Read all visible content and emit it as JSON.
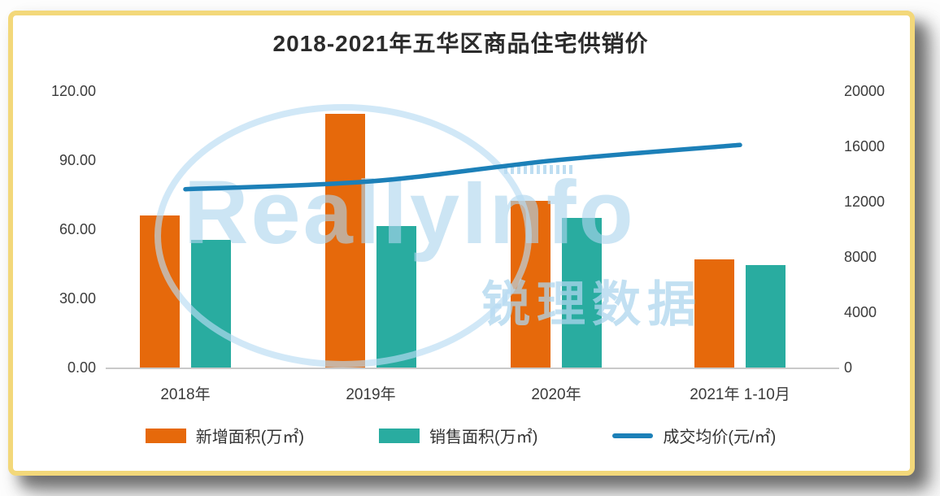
{
  "chart_data": {
    "type": "bar",
    "title": "2018-2021年五华区商品住宅供销价",
    "categories": [
      "2018年",
      "2019年",
      "2020年",
      "2021年 1-10月"
    ],
    "series": [
      {
        "name": "新增面积(万㎡)",
        "type": "bar",
        "axis": "left",
        "color": "#E6690B",
        "values": [
          66,
          110,
          72.5,
          47
        ]
      },
      {
        "name": "销售面积(万㎡)",
        "type": "bar",
        "axis": "left",
        "color": "#29ACA0",
        "values": [
          55.5,
          61.5,
          65,
          44.5
        ]
      },
      {
        "name": "成交均价(元/㎡)",
        "type": "line",
        "axis": "right",
        "color": "#1C80B8",
        "values": [
          12900,
          13470,
          15000,
          16100
        ]
      }
    ],
    "left_axis": {
      "min": 0,
      "max": 120,
      "ticks": [
        "0.00",
        "30.00",
        "60.00",
        "90.00",
        "120.00"
      ]
    },
    "right_axis": {
      "min": 0,
      "max": 20000,
      "ticks": [
        "0",
        "4000",
        "8000",
        "12000",
        "16000",
        "20000"
      ]
    },
    "legend_position": "bottom",
    "grid": false
  },
  "watermark": {
    "brand_en": "ReallyInfo",
    "brand_cn": "锐理数据"
  },
  "colors": {
    "bar_new_area": "#E6690B",
    "bar_sales_area": "#29ACA0",
    "line_avg_price": "#1C80B8",
    "frame_border": "#F3D87A",
    "watermark_blue": "#ADD5EE",
    "axis_text": "#3C3C3C",
    "title_text": "#2B2B2B"
  }
}
